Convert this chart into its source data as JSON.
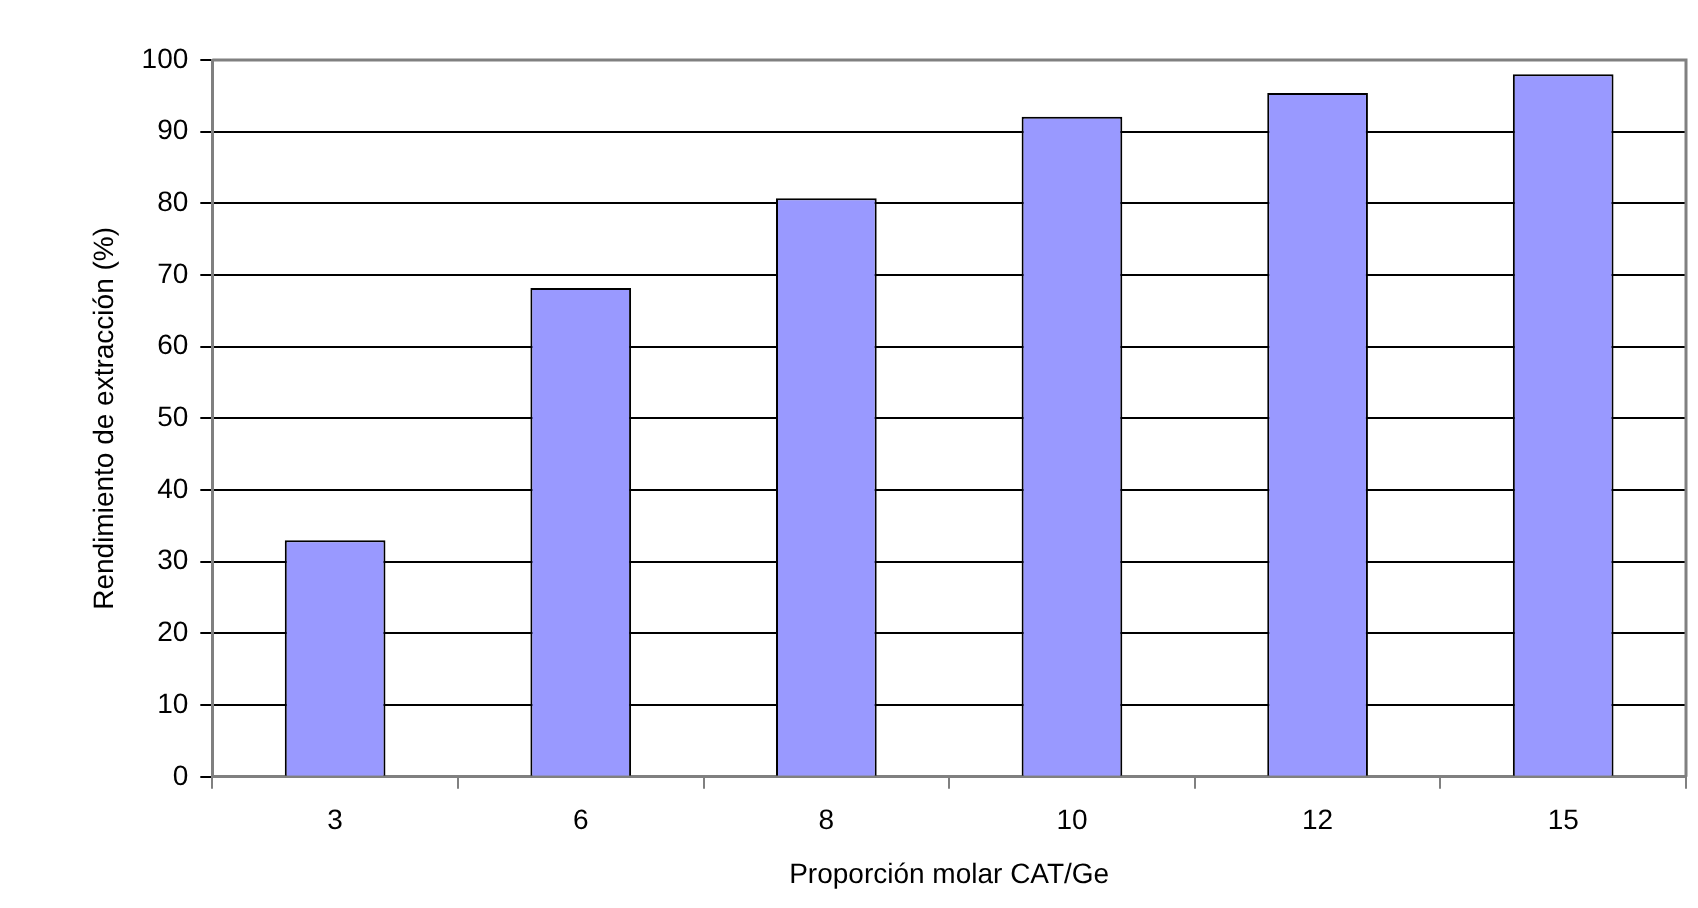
{
  "chart_data": {
    "type": "bar",
    "xlabel": "Proporción molar CAT/Ge",
    "ylabel": "Rendimiento de extracción (%)",
    "categories": [
      "3",
      "6",
      "8",
      "10",
      "12",
      "15"
    ],
    "values": [
      33,
      68.2,
      80.7,
      92.1,
      95.4,
      98
    ],
    "color": "#9999ff",
    "ylim": [
      0,
      100
    ],
    "yticks": [
      0,
      10,
      20,
      30,
      40,
      50,
      60,
      70,
      80,
      90,
      100
    ],
    "grid": "y",
    "legend": false
  }
}
